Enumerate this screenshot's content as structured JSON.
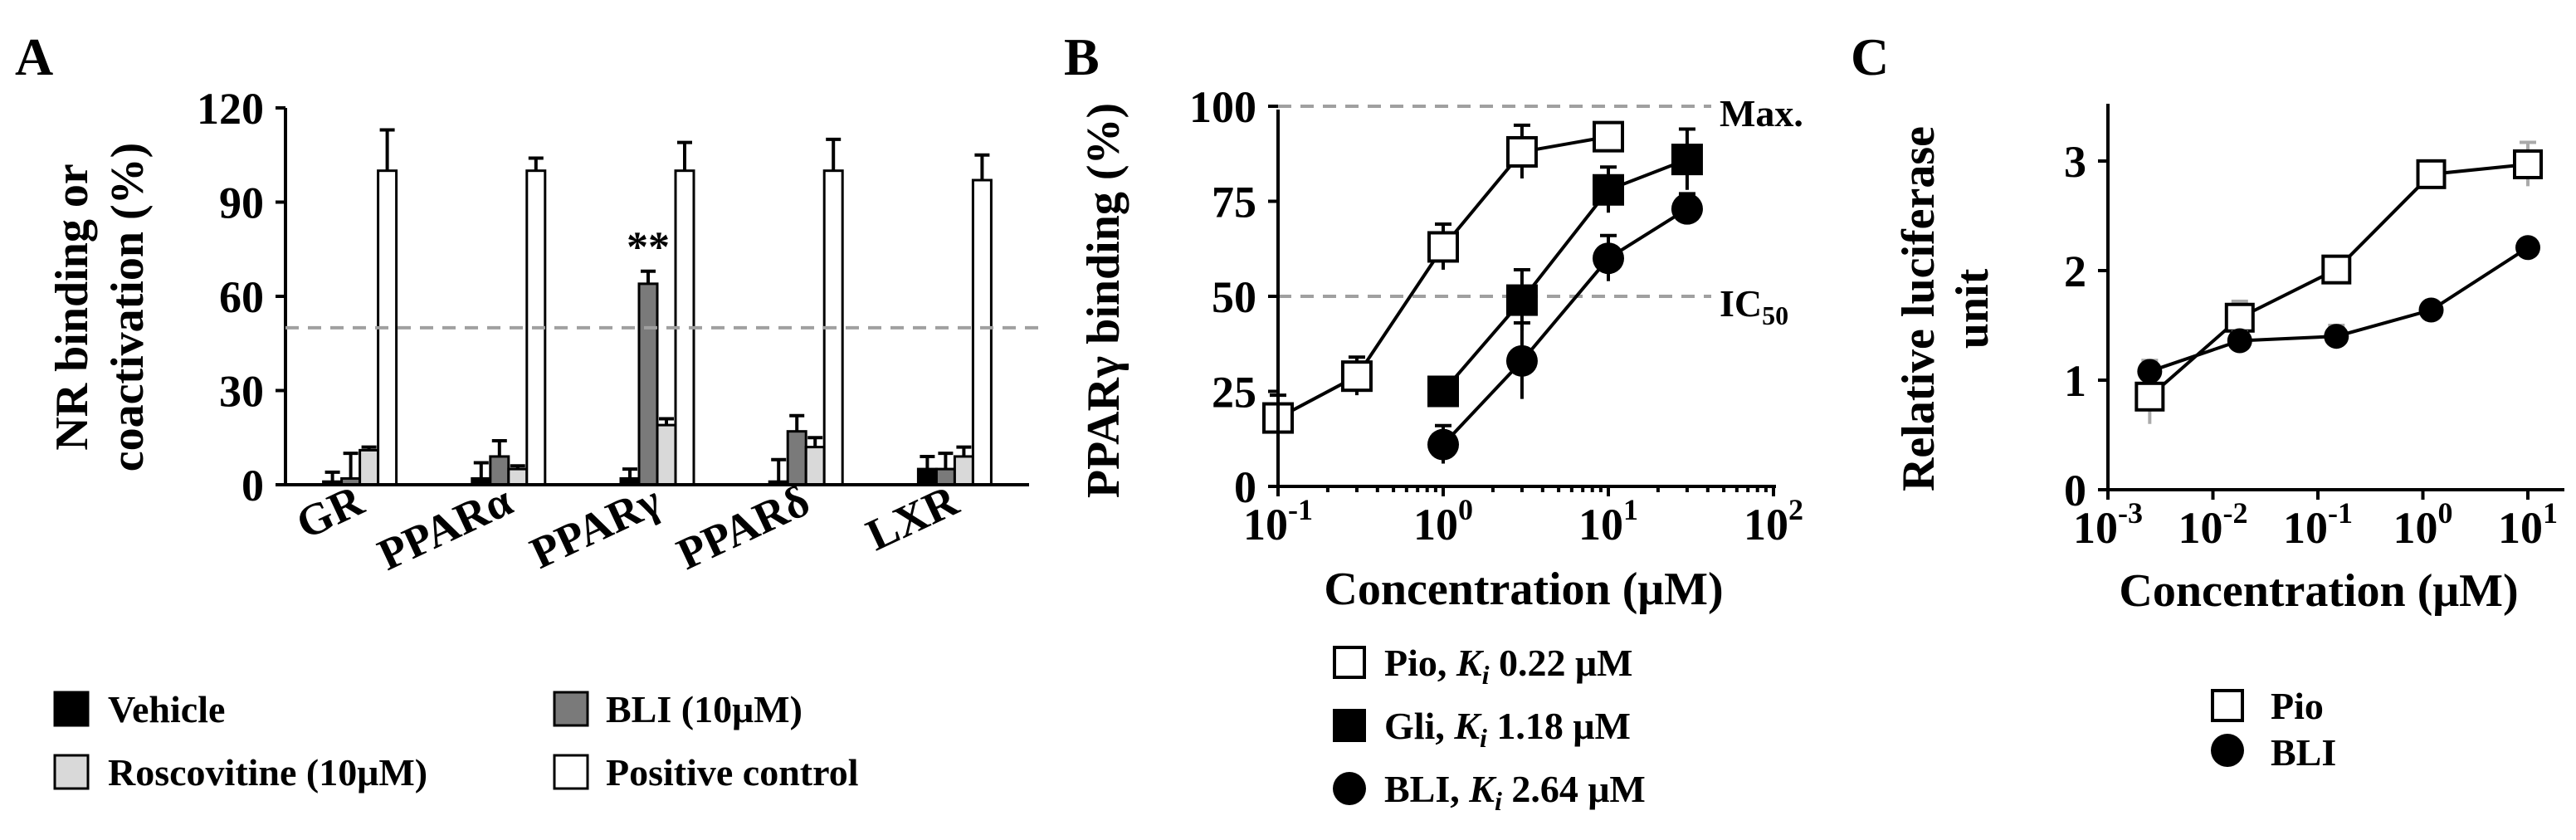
{
  "colors": {
    "vehicle": "#000000",
    "bli_bar": "#7a7a7a",
    "roscovitine": "#d9d9d9",
    "positive_control": "#ffffff",
    "reference_line": "#a0a0a0",
    "pio_marker": "#ffffff",
    "gli_marker": "#000000",
    "bli_marker": "#000000",
    "error_bar_a": "#000000",
    "error_bar_c": "#aaaaaa"
  },
  "chart_data": [
    {
      "panel": "A",
      "type": "bar",
      "ylabel_line1": "NR binding or",
      "ylabel_line2": "coactivation (%)",
      "categories": [
        "GR",
        "PPARα",
        "PPARγ",
        "PPARδ",
        "LXR"
      ],
      "yticks": [
        "0",
        "30",
        "60",
        "90",
        "120"
      ],
      "ylim": [
        0,
        120
      ],
      "reference_line": 50,
      "series": [
        {
          "name": "Vehicle",
          "values": [
            1,
            2,
            2,
            1,
            5
          ],
          "errors": [
            3,
            5,
            3,
            7,
            4
          ]
        },
        {
          "name": "BLI (10μM)",
          "values": [
            2,
            9,
            64,
            17,
            5
          ],
          "errors": [
            8,
            5,
            4,
            5,
            5
          ]
        },
        {
          "name": "Roscovitine (10μM)",
          "values": [
            11,
            5,
            19,
            12,
            9
          ],
          "errors": [
            1,
            1,
            2,
            3,
            3
          ]
        },
        {
          "name": "Positive control",
          "values": [
            100,
            100,
            100,
            100,
            97
          ],
          "errors": [
            13,
            4,
            9,
            10,
            8
          ]
        }
      ],
      "annotation": {
        "text": "**",
        "category": "PPARγ",
        "series": "BLI (10μM)"
      },
      "legend": [
        "Vehicle",
        "BLI (10μM)",
        "Roscovitine (10μM)",
        "Positive control"
      ]
    },
    {
      "panel": "B",
      "type": "line",
      "xlabel": "Concentration (μM)",
      "ylabel": "PPARγ binding (%)",
      "xscale": "log",
      "xlim": [
        0.1,
        100
      ],
      "xticks": [
        {
          "base": "10",
          "exp": "-1"
        },
        {
          "base": "10",
          "exp": "0"
        },
        {
          "base": "10",
          "exp": "1"
        },
        {
          "base": "10",
          "exp": "2"
        }
      ],
      "yticks": [
        "0",
        "25",
        "50",
        "75",
        "100"
      ],
      "ylim": [
        0,
        100
      ],
      "reference_lines": [
        {
          "y": 100,
          "label": "Max."
        },
        {
          "y": 50,
          "label": "IC",
          "label_sub": "50"
        }
      ],
      "series": [
        {
          "name": "Pio",
          "marker": "open-square",
          "x": [
            0.1,
            0.3,
            1,
            3,
            10
          ],
          "y": [
            18,
            29,
            63,
            88,
            92
          ],
          "errors": [
            6,
            5,
            6,
            7,
            3
          ]
        },
        {
          "name": "Gli",
          "marker": "filled-square",
          "x": [
            1,
            3,
            10,
            30
          ],
          "y": [
            25,
            49,
            78,
            86
          ],
          "errors": [
            3,
            8,
            6,
            8
          ]
        },
        {
          "name": "BLI",
          "marker": "filled-circle",
          "x": [
            1,
            3,
            10,
            30
          ],
          "y": [
            11,
            33,
            60,
            73
          ],
          "errors": [
            5,
            10,
            6,
            4
          ]
        }
      ],
      "legend": [
        {
          "prefix": "Pio, ",
          "k": "K",
          "sub": "i",
          "value": " 0.22 μM"
        },
        {
          "prefix": "Gli, ",
          "k": "K",
          "sub": "i",
          "value": " 1.18 μM"
        },
        {
          "prefix": "BLI, ",
          "k": "K",
          "sub": "i",
          "value": " 2.64 μM"
        }
      ]
    },
    {
      "panel": "C",
      "type": "line",
      "xlabel": "Concentration (μM)",
      "ylabel_line1": "Relative luciferase",
      "ylabel_line2": "unit",
      "xscale": "log",
      "xlim": [
        0.001,
        10
      ],
      "xticks": [
        {
          "base": "10",
          "exp": "-3"
        },
        {
          "base": "10",
          "exp": "-2"
        },
        {
          "base": "10",
          "exp": "-1"
        },
        {
          "base": "10",
          "exp": "0"
        },
        {
          "base": "10",
          "exp": "1"
        }
      ],
      "yticks": [
        "0",
        "1",
        "2",
        "3"
      ],
      "ylim": [
        0,
        3.5
      ],
      "series": [
        {
          "name": "Pio",
          "marker": "open-square",
          "x": [
            0.0025,
            0.018,
            0.15,
            1.2,
            10
          ],
          "y": [
            0.85,
            1.57,
            2.01,
            2.88,
            2.97
          ],
          "errors": [
            0.25,
            0.15,
            0.1,
            0.12,
            0.2
          ]
        },
        {
          "name": "BLI",
          "marker": "filled-circle",
          "x": [
            0.0025,
            0.018,
            0.15,
            1.2,
            10
          ],
          "y": [
            1.08,
            1.36,
            1.4,
            1.64,
            2.21
          ],
          "errors": [
            0.1,
            0.08,
            0.1,
            0.06,
            0.06
          ]
        }
      ],
      "legend": [
        "Pio",
        "BLI"
      ]
    }
  ],
  "panel_labels": {
    "a": "A",
    "b": "B",
    "c": "C"
  }
}
